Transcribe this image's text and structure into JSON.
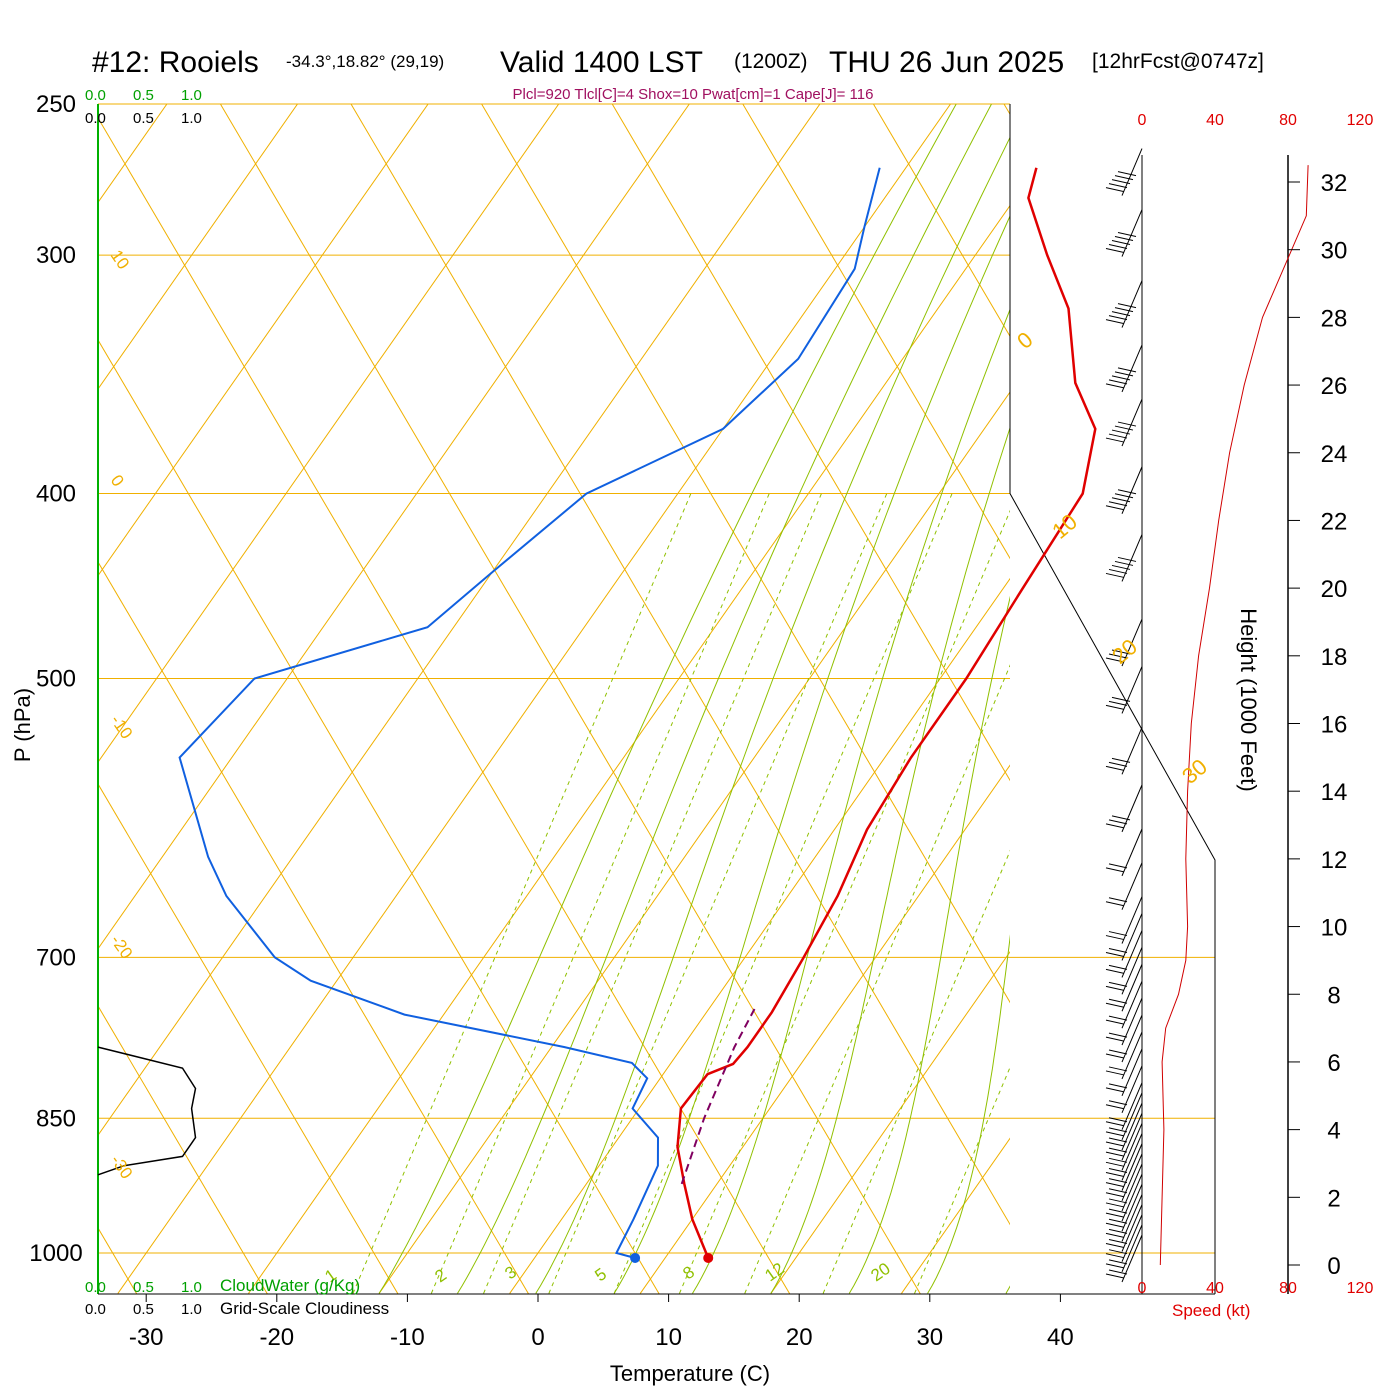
{
  "title": {
    "station": "#12: Rooiels",
    "coords": "-34.3°,18.82° (29,19)",
    "valid": "Valid 1400 LST",
    "zulu": "(1200Z)",
    "date": "THU 26 Jun 2025",
    "forecast": "[12hrFcst@0747z]"
  },
  "parcel_info": "Plcl=920 Tlcl[C]=4 Shox=10 Pwat[cm]=1 Cape[J]= 116",
  "colors": {
    "temperature": "#e00000",
    "dewpoint": "#1060e0",
    "isobar": "#f0b000",
    "isotherm": "#f0b000",
    "dry_adiabat": "#f0b000",
    "moist_adiabat": "#90c000",
    "mixing_ratio": "#90c000",
    "parcel": "#800060",
    "cloudwater": "#00a000",
    "cloudiness": "#000000",
    "wind_speed": "#d00000"
  },
  "labels": {
    "ylabel": "P (hPa)",
    "xlabel": "Temperature (C)",
    "right_label": "Height (1000 Feet)",
    "speed_label": "Speed (kt)",
    "cloudwater_label": "CloudWater (g/Kg)",
    "cloudiness_label": "Grid-Scale Cloudiness"
  },
  "scales": {
    "cloudwater_ticks": [
      "0.0",
      "0.5",
      "1.0"
    ],
    "cloudiness_ticks": [
      "0.0",
      "0.5",
      "1.0"
    ],
    "speed_ticks": [
      "0",
      "40",
      "80",
      "120"
    ]
  },
  "chart_data": {
    "type": "line",
    "subtype": "skew-T log-P sounding",
    "xlim": [
      -34,
      36
    ],
    "ylim_hpa": [
      1050,
      250
    ],
    "pressure_ticks": [
      250,
      300,
      400,
      500,
      700,
      850,
      1000
    ],
    "temperature_ticks": [
      -30,
      -20,
      -10,
      0,
      10,
      20,
      30,
      40
    ],
    "height_ticks_kft": [
      0,
      2,
      4,
      6,
      8,
      10,
      12,
      14,
      16,
      18,
      20,
      22,
      24,
      26,
      28,
      30,
      32
    ],
    "isotherm_labels": [
      10,
      0,
      -10,
      -20,
      -30
    ],
    "dry_adiabat_labels": [
      0,
      10,
      20,
      30
    ],
    "mixing_ratio_labels": [
      "1",
      "2",
      "3",
      "5",
      "8",
      "12",
      "20"
    ],
    "series": [
      {
        "name": "temperature",
        "points": [
          [
            13.3,
            1006
          ],
          [
            10.0,
            960
          ],
          [
            7.5,
            920
          ],
          [
            5.0,
            880
          ],
          [
            3.2,
            840
          ],
          [
            3.4,
            806
          ],
          [
            4.8,
            796
          ],
          [
            5.0,
            780
          ],
          [
            5.0,
            748
          ],
          [
            4.5,
            700
          ],
          [
            3.8,
            650
          ],
          [
            2.5,
            600
          ],
          [
            2.0,
            550
          ],
          [
            2.0,
            500
          ],
          [
            1.5,
            450
          ],
          [
            1.0,
            400
          ],
          [
            -1.5,
            370
          ],
          [
            -5.5,
            350
          ],
          [
            -10.0,
            320
          ],
          [
            -14.5,
            300
          ],
          [
            -19.0,
            280
          ],
          [
            -20.0,
            270
          ]
        ]
      },
      {
        "name": "dewpoint",
        "points": [
          [
            7.7,
            1006
          ],
          [
            6.0,
            1000
          ],
          [
            5.5,
            960
          ],
          [
            4.5,
            900
          ],
          [
            3.0,
            870
          ],
          [
            -0.5,
            840
          ],
          [
            -1.0,
            810
          ],
          [
            -3.0,
            795
          ],
          [
            -9.0,
            780
          ],
          [
            -23.0,
            750
          ],
          [
            -32.0,
            720
          ],
          [
            -36.0,
            700
          ],
          [
            -43.0,
            650
          ],
          [
            -46.5,
            620
          ],
          [
            -54.0,
            550
          ],
          [
            -52.5,
            500
          ],
          [
            -42.0,
            470
          ],
          [
            -40.0,
            440
          ],
          [
            -37.0,
            400
          ],
          [
            -30.0,
            370
          ],
          [
            -28.0,
            340
          ],
          [
            -28.5,
            305
          ],
          [
            -30.0,
            290
          ],
          [
            -32.0,
            270
          ]
        ]
      },
      {
        "name": "parcel",
        "points": [
          [
            7.3,
            920
          ],
          [
            5.5,
            850
          ],
          [
            4.0,
            780
          ],
          [
            3.5,
            745
          ]
        ]
      }
    ],
    "wind_speed_kt": [
      [
        0,
        10
      ],
      [
        2,
        11
      ],
      [
        4,
        12
      ],
      [
        6,
        11
      ],
      [
        7,
        13
      ],
      [
        8,
        20
      ],
      [
        9,
        24
      ],
      [
        10,
        25
      ],
      [
        12,
        24
      ],
      [
        14,
        25
      ],
      [
        16,
        27
      ],
      [
        18,
        31
      ],
      [
        20,
        37
      ],
      [
        22,
        42
      ],
      [
        24,
        48
      ],
      [
        26,
        56
      ],
      [
        28,
        66
      ],
      [
        30,
        82
      ],
      [
        31,
        90
      ],
      [
        32.5,
        91
      ]
    ],
    "wind_barb_heights_kft": [
      0,
      0.3,
      0.6,
      0.9,
      1.2,
      1.5,
      1.8,
      2.1,
      2.4,
      2.7,
      3.0,
      3.3,
      3.6,
      3.9,
      4.2,
      4.5,
      5,
      5.5,
      6,
      6.5,
      7,
      7.5,
      8,
      8.5,
      9,
      9.5,
      10,
      11,
      12,
      13.3,
      15,
      16.8,
      18.2,
      20.7,
      22.7,
      24.7,
      26.3,
      28.2,
      30.3,
      32.1
    ],
    "cloudiness_profile": [
      [
        0.0,
        780
      ],
      [
        0.65,
        800
      ],
      [
        0.75,
        820
      ],
      [
        0.72,
        840
      ],
      [
        0.75,
        870
      ],
      [
        0.65,
        890
      ],
      [
        0.2,
        900
      ],
      [
        0.0,
        910
      ]
    ]
  }
}
